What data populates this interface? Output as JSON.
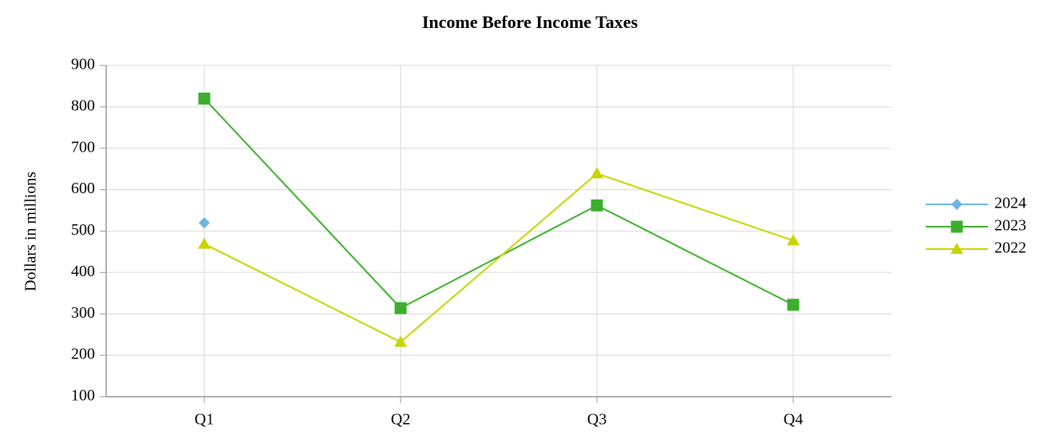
{
  "chart_data": {
    "type": "line",
    "title": "Income Before Income Taxes",
    "y_label": "Dollars in millions",
    "categories": [
      "Q1",
      "Q2",
      "Q3",
      "Q4"
    ],
    "series": [
      {
        "name": "2024",
        "color": "#6cb4e4",
        "marker": "diamond",
        "values": [
          520,
          null,
          null,
          null
        ]
      },
      {
        "name": "2023",
        "color": "#3daf2c",
        "marker": "square",
        "values": [
          820,
          314,
          562,
          322
        ]
      },
      {
        "name": "2022",
        "color": "#c8d400",
        "marker": "triangle",
        "values": [
          469,
          232,
          639,
          477
        ]
      }
    ],
    "ylim": [
      100,
      900
    ],
    "yticks": [
      100,
      200,
      300,
      400,
      500,
      600,
      700,
      800,
      900
    ],
    "grid": true,
    "legend": "right"
  }
}
